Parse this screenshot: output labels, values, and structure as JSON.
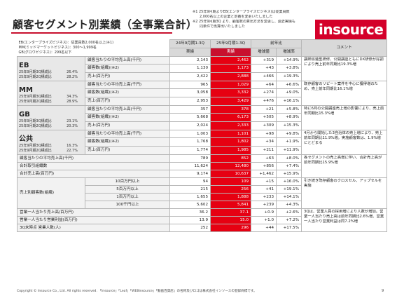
{
  "title": "顧客セグメント別業績（全事業合計）",
  "notes": [
    "※1 25年9月期よりEB(エンタープライズビジネス)は従業員数",
    "　　2,000名以上の企業と定義を変更いたしました",
    "※2 25年9月期3Q より、顧客数の算出方法を変更し、過去実績も",
    "　　同条件で再算出いたしました"
  ],
  "logo": {
    "i": "i",
    "rest": "nsource"
  },
  "definitions": [
    "EB(エンタープライズビジネス)：従業員数2,000名以上(※1)",
    "MM(ミッドマーケットビジネス)：300～1,999名",
    "GB(グロウビジネス)：299名以下"
  ],
  "headers": {
    "col_prev": "24年9月期1-3Q",
    "col_curr": "25年9月期1-3Q",
    "col_yoy": "前年比",
    "sub_actual1": "実績",
    "sub_actual2": "実績",
    "sub_diff": "増減値",
    "sub_rate": "増減率",
    "comment": "コメント"
  },
  "segments": [
    {
      "name": "EB",
      "share_lines": [
        {
          "label": "25年9月期3Q構成比",
          "value": "26.4%"
        },
        {
          "label": "25年9月期2Q構成比",
          "value": "28.2%"
        }
      ],
      "rows": [
        {
          "metric": "顧客当たりの平均売上高(千円)",
          "prev": "2,143",
          "curr": "2,462",
          "diff": "+319",
          "rate": "+14.9%"
        },
        {
          "metric": "顧客数(組織)(※2)",
          "prev": "1,130",
          "curr": "1,173",
          "diff": "+43",
          "rate": "+3.8%"
        },
        {
          "metric": "売上(百万円)",
          "prev": "2,422",
          "curr": "2,888",
          "diff": "+466",
          "rate": "+19.3%"
        }
      ],
      "comment": "講師派遣型研修、公開講座ともにDX研修が好調により売上前年同期比19.3%増"
    },
    {
      "name": "MM",
      "share_lines": [
        {
          "label": "25年9月期3Q構成比",
          "value": "34.3%"
        },
        {
          "label": "25年9月期2Q構成比",
          "value": "28.9%"
        }
      ],
      "rows": [
        {
          "metric": "顧客当たりの平均売上高(千円)",
          "prev": "965",
          "curr": "1,029",
          "diff": "+64",
          "rate": "+6.6%"
        },
        {
          "metric": "顧客数(組織)(※2)",
          "prev": "3,058",
          "curr": "3,332",
          "diff": "+274",
          "rate": "+9.0%"
        },
        {
          "metric": "売上(百万円)",
          "prev": "2,953",
          "curr": "3,429",
          "diff": "+476",
          "rate": "+16.1%"
        }
      ],
      "comment": "既存顧客のリピート案件を中心に獲得増のため、売上前年同期比16.1%増"
    },
    {
      "name": "GB",
      "share_lines": [
        {
          "label": "25年9月期3Q構成比",
          "value": "23.1%"
        },
        {
          "label": "25年9月期2Q構成比",
          "value": "20.3%"
        }
      ],
      "rows": [
        {
          "metric": "顧客当たりの平均売上高(千円)",
          "prev": "357",
          "curr": "378",
          "diff": "+21",
          "rate": "+5.8%"
        },
        {
          "metric": "顧客数(組織)(※2)",
          "prev": "5,668",
          "curr": "6,173",
          "diff": "+505",
          "rate": "+8.9%"
        },
        {
          "metric": "売上(百万円)",
          "prev": "2,024",
          "curr": "2,333",
          "diff": "+309",
          "rate": "+15.3%"
        }
      ],
      "comment": "特に6月の公開講座売上増の影響により、売上前年同期比15.3%増"
    },
    {
      "name": "公共",
      "share_lines": [
        {
          "label": "25年9月期3Q構成比",
          "value": "16.3%"
        },
        {
          "label": "25年9月期2Q構成比",
          "value": "22.7%"
        }
      ],
      "rows": [
        {
          "metric": "顧客当たりの平均売上高(千円)",
          "prev": "1,003",
          "curr": "1,101",
          "diff": "+98",
          "rate": "+9.8%"
        },
        {
          "metric": "顧客数(組織)(※2)",
          "prev": "1,768",
          "curr": "1,802",
          "diff": "+34",
          "rate": "+1.9%"
        },
        {
          "metric": "売上(百万円)",
          "prev": "1,774",
          "curr": "1,985",
          "diff": "+211",
          "rate": "+11.9%"
        }
      ],
      "comment": "4月から開始した3自治体の売上増により、売上前年同期比11.9%増。実施顧客数は、1.9%増にとどまる"
    }
  ],
  "totals": [
    {
      "metric": "顧客当たりの平均売上高(千円)",
      "prev": "789",
      "curr": "852",
      "diff": "+63",
      "rate": "+8.0%"
    },
    {
      "metric": "合計取引組織数",
      "prev": "11,624",
      "curr": "12,480",
      "diff": "+856",
      "rate": "+7.4%"
    },
    {
      "metric": "合計売上高(百万円)",
      "prev": "9,174",
      "curr": "10,637",
      "diff": "+1,462",
      "rate": "+15.9%"
    }
  ],
  "totals_comment": "各セグメントの売上高増に伴い、合計売上高が前年同期比15.9%増",
  "bands_label": "売上別顧客数(組織)",
  "bands": [
    {
      "band": "10百万円以上",
      "prev": "94",
      "curr": "109",
      "diff": "+15",
      "rate": "+16.0%"
    },
    {
      "band": "5百万円以上",
      "prev": "215",
      "curr": "256",
      "diff": "+41",
      "rate": "+19.1%"
    },
    {
      "band": "1百万円以上",
      "prev": "1,655",
      "curr": "1,888",
      "diff": "+233",
      "rate": "+14.1%"
    },
    {
      "band": "100千円以上",
      "prev": "5,602",
      "curr": "5,841",
      "diff": "+239",
      "rate": "+4.3%"
    }
  ],
  "bands_comment": "引き続き既存顧客のクロスセル、アップセルを実施",
  "sales_rows": [
    {
      "metric": "営業一人当たり売上高(百万円)",
      "prev": "36.2",
      "curr": "37.1",
      "diff": "+0.9",
      "rate": "+2.6%"
    },
    {
      "metric": "営業一人当たり営業利益(百万円)",
      "prev": "13.9",
      "curr": "15.0",
      "diff": "+1.0",
      "rate": "+7.2%"
    },
    {
      "metric": "3Q末時点 営業人数(人)",
      "prev": "252",
      "curr": "296",
      "diff": "+44",
      "rate": "+17.5%"
    }
  ],
  "sales_comment": "3Qは、営業人員の採用増により人数が増加。営業一人当たり売上高は前年同期比2.6%増、営業一人当たり営業利益は同7.2%増",
  "footer": "Copyright © Insource Co., Ltd. All rights reserved. 「Insource」「Leaf」「WEBinsource」「動画百貨店」の名称及びロゴは株式会社インソースの登録商標です。",
  "page_number": "9",
  "colors": {
    "accent_red": "#e60012",
    "header_grey": "#d9d9d9"
  }
}
